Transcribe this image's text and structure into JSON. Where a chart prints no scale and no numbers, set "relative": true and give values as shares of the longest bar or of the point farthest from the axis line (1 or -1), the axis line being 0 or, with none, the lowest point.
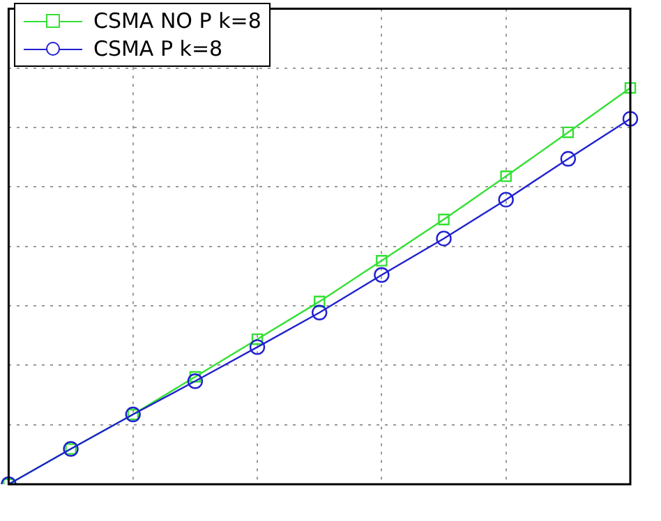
{
  "chart_data": {
    "type": "line",
    "relative": true,
    "categories": [
      null,
      null,
      null,
      null,
      null,
      null,
      null,
      null,
      null,
      null,
      null
    ],
    "series": [
      {
        "name": "CSMA NO P k=8",
        "color": "#33e033",
        "marker": "square",
        "values": [
          0,
          0.089,
          0.176,
          0.271,
          0.366,
          0.461,
          0.564,
          0.668,
          0.777,
          0.888,
          1
        ]
      },
      {
        "name": "CSMA P k=8",
        "color": "#2020d0",
        "marker": "circle",
        "values": [
          0,
          0.089,
          0.176,
          0.26,
          0.346,
          0.433,
          0.528,
          0.62,
          0.718,
          0.821,
          0.922
        ]
      }
    ],
    "grid": true,
    "legend": "top left",
    "line_style": "solid"
  }
}
